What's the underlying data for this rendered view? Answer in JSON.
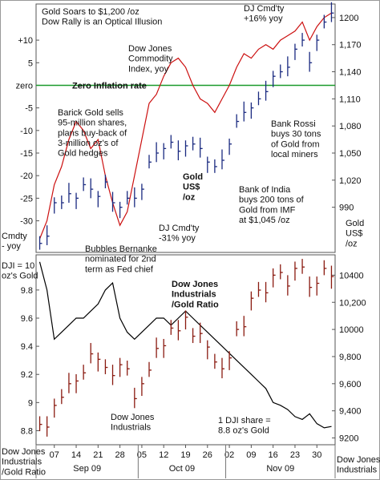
{
  "x_axis": {
    "categories": [
      null,
      null,
      "07",
      null,
      null,
      "14",
      null,
      null,
      "21",
      null,
      null,
      "28",
      null,
      null,
      "05",
      null,
      null,
      "12",
      null,
      null,
      "19",
      null,
      null,
      "26",
      null,
      null,
      "02",
      null,
      null,
      "09",
      null,
      null,
      "16",
      null,
      null,
      "23",
      null,
      null,
      "30",
      null,
      null
    ],
    "months": [
      "Sep 09",
      "Oct 09",
      "Nov 09"
    ]
  },
  "chart_data": [
    {
      "type": "combo",
      "title": "Gold Soars to $1,200 /oz\nDow Rally is an Optical Illusion",
      "ylabel": "Cmdty\n- yoy",
      "y2label": "Gold\nUS$\n/oz",
      "ylim": [
        -37,
        18
      ],
      "yticks": [
        {
          "value": 10,
          "label": "+10"
        },
        5,
        {
          "value": 0,
          "label": "zero"
        },
        -5,
        -10,
        -15,
        -20,
        -25,
        -30
      ],
      "y2lim": [
        940,
        1215
      ],
      "y2ticks": [
        1200,
        {
          "value": 1170,
          "label": "1,170"
        },
        {
          "value": 1140,
          "label": "1,140"
        },
        {
          "value": 1110,
          "label": "1,110"
        },
        {
          "value": 1080,
          "label": "1,080"
        },
        {
          "value": 1050,
          "label": "1,050"
        },
        {
          "value": 1020,
          "label": "1,020"
        },
        990
      ],
      "zero_line": {
        "label": "Zero Inflation rate",
        "color": "#1a9a2a"
      },
      "series": [
        {
          "name": "Dow Jones\nCommodity\nIndex, yoy",
          "color": "#cc1010",
          "values": [
            -34,
            -30,
            -22,
            -18,
            -12,
            -8,
            -10,
            -14,
            -12,
            -20,
            -26,
            -31,
            -28,
            -20,
            -12,
            -4,
            -2,
            2,
            5,
            6,
            4,
            0,
            -3,
            -4,
            -6,
            -3,
            0,
            4,
            7,
            6,
            8,
            9,
            8,
            10,
            11,
            12,
            14,
            10,
            13,
            15,
            16
          ]
        },
        {
          "name": "Gold\nUS$\n/oz",
          "color": "#1a2a80",
          "axis": "y2",
          "high": [
            958,
            970,
            1001,
            1003,
            1017,
            1006,
            1023,
            1022,
            1008,
            1026,
            1007,
            996,
            1008,
            1012,
            1016,
            1048,
            1062,
            1061,
            1070,
            1064,
            1064,
            1068,
            1067,
            1046,
            1043,
            1054,
            1066,
            1093,
            1107,
            1106,
            1118,
            1130,
            1141,
            1148,
            1157,
            1171,
            1183,
            1162,
            1181,
            1203,
            1217
          ],
          "low": [
            943,
            948,
            983,
            988,
            995,
            988,
            1008,
            1000,
            990,
            1011,
            985,
            978,
            993,
            990,
            998,
            1033,
            1040,
            1043,
            1055,
            1042,
            1046,
            1053,
            1045,
            1028,
            1028,
            1032,
            1048,
            1078,
            1085,
            1088,
            1103,
            1108,
            1123,
            1133,
            1135,
            1153,
            1168,
            1140,
            1163,
            1188,
            1195
          ],
          "close": [
            950,
            958,
            995,
            995,
            1005,
            1000,
            1015,
            1010,
            1002,
            1018,
            995,
            990,
            1000,
            1000,
            1010,
            1040,
            1050,
            1055,
            1062,
            1052,
            1058,
            1060,
            1055,
            1040,
            1035,
            1042,
            1060,
            1085,
            1095,
            1100,
            1110,
            1118,
            1135,
            1140,
            1145,
            1165,
            1175,
            1150,
            1175,
            1195,
            1205
          ]
        }
      ],
      "annotations": [
        "DJ Cmd'ty\n+16% yoy",
        "Barick Gold sells\n95-million shares,\nplans buy-back of\n3-million oz's of\nGold hedges",
        "Bank Rossi\nbuys 30 tons\nof Gold from\nlocal miners",
        "Bank of India\nbuys 200 tons of\nGold from IMF\nat $1,045 /oz",
        "DJ Cmd'ty\n-31% yoy",
        "Bubbles Bernanke\nnominated for 2nd\nterm as Fed chief"
      ]
    },
    {
      "type": "combo",
      "ylabel": "Dow Jones\nIndustrials\n/Gold Ratio",
      "y2label": "Dow Jones\nIndustrials",
      "ylim": [
        8.7,
        10.05
      ],
      "yticks": [
        9.8,
        9.6,
        9.4,
        9.2,
        9,
        8.8
      ],
      "y2lim": [
        9150,
        10550
      ],
      "y2ticks": [
        10400,
        {
          "value": 10200,
          "label": "10,200"
        },
        10000,
        {
          "value": 9800,
          "label": "9,800"
        },
        {
          "value": 9600,
          "label": "9,600"
        },
        {
          "value": 9400,
          "label": "9,400"
        },
        9200
      ],
      "series": [
        {
          "name": "Dow Jones\nIndustrials\n/Gold Ratio",
          "color": "#000000",
          "values": [
            10.0,
            9.8,
            9.45,
            9.5,
            9.55,
            9.6,
            9.6,
            9.65,
            9.7,
            9.8,
            9.85,
            9.6,
            9.5,
            9.45,
            9.5,
            9.55,
            9.6,
            9.6,
            9.55,
            9.6,
            9.65,
            9.6,
            9.55,
            9.5,
            9.45,
            9.4,
            9.35,
            9.3,
            9.25,
            9.2,
            9.15,
            9.1,
            9.0,
            8.98,
            8.95,
            8.9,
            8.88,
            8.92,
            8.85,
            8.82,
            8.83
          ]
        },
        {
          "name": "Dow Jones\nIndustrials",
          "color": "#8a1a10",
          "axis": "y2",
          "high": [
            9360,
            9360,
            9490,
            9560,
            9680,
            9670,
            9740,
            9900,
            9830,
            9780,
            9740,
            9790,
            9770,
            9570,
            9650,
            9760,
            9940,
            9930,
            10070,
            10070,
            10140,
            10010,
            10050,
            9920,
            9820,
            9790,
            9840,
            10060,
            10100,
            10280,
            10350,
            10350,
            10450,
            10480,
            10400,
            10500,
            10520,
            10390,
            10390,
            10510,
            10470
          ],
          "low": [
            9250,
            9210,
            9350,
            9450,
            9530,
            9530,
            9630,
            9750,
            9690,
            9670,
            9590,
            9650,
            9660,
            9420,
            9510,
            9650,
            9790,
            9790,
            9960,
            9920,
            10000,
            9900,
            9900,
            9780,
            9710,
            9640,
            9700,
            9950,
            9950,
            10140,
            10240,
            10200,
            10310,
            10370,
            10250,
            10360,
            10410,
            10240,
            10250,
            10400,
            10300
          ],
          "close": [
            9300,
            9280,
            9440,
            9500,
            9600,
            9620,
            9680,
            9820,
            9780,
            9720,
            9660,
            9740,
            9710,
            9490,
            9600,
            9700,
            9860,
            9880,
            10010,
            9990,
            10090,
            9950,
            9970,
            9870,
            9760,
            9710,
            9790,
            10000,
            10020,
            10230,
            10290,
            10270,
            10400,
            10420,
            10320,
            10450,
            10460,
            10310,
            10340,
            10450,
            10390
          ]
        }
      ],
      "annotations": [
        "DJI = 10\noz's Gold",
        "1 DJI share =\n8.8 oz's Gold"
      ]
    }
  ]
}
